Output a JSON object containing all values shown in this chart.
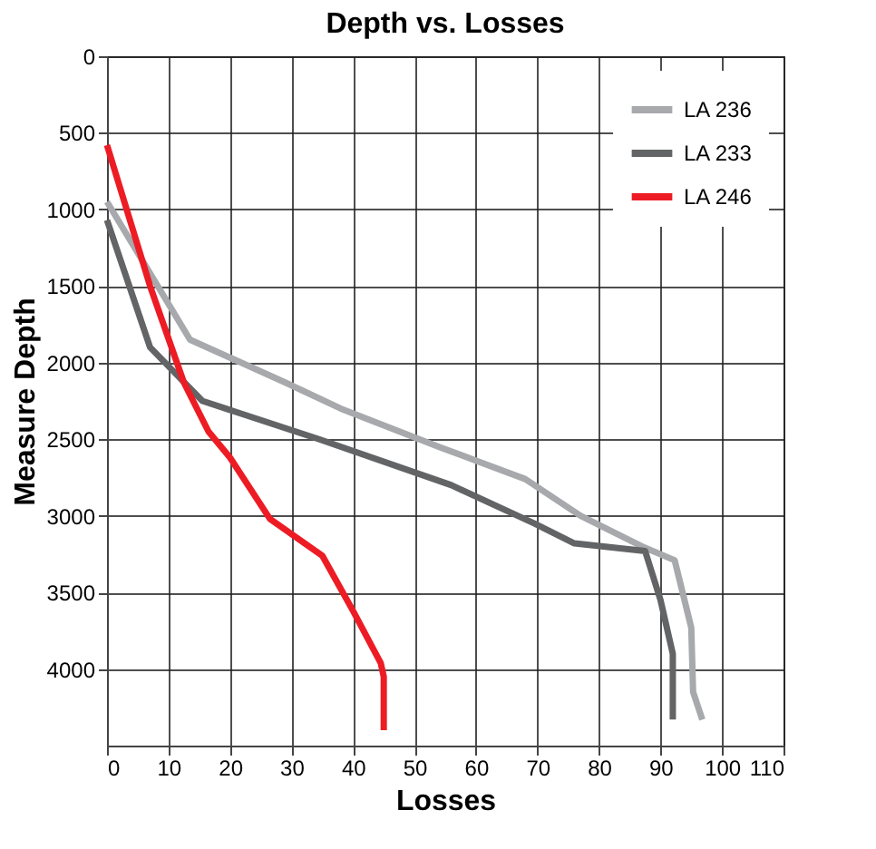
{
  "chart_data": {
    "type": "line",
    "title": "Depth vs. Losses",
    "xlabel": "Losses",
    "ylabel": "Measure Depth",
    "xlim": [
      0,
      110
    ],
    "xticks": [
      0,
      10,
      20,
      30,
      40,
      50,
      60,
      70,
      80,
      90,
      100,
      110
    ],
    "ylim": [
      4500,
      0
    ],
    "yticks": [
      0,
      500,
      1000,
      1500,
      2000,
      2500,
      3000,
      3500,
      4000
    ],
    "grid": true,
    "legend": "top right",
    "marker": "none",
    "line_style": "solid",
    "series": [
      {
        "name": "LA 236",
        "color": "#a7a9ac",
        "x": [
          0,
          13.5,
          29,
          38,
          54,
          68,
          77,
          87,
          92.3,
          95,
          95.3,
          96.8
        ],
        "values": [
          950,
          1850,
          2130,
          2300,
          2550,
          2760,
          3000,
          3200,
          3290,
          3730,
          4150,
          4330
        ]
      },
      {
        "name": "LA 233",
        "color": "#636466",
        "x": [
          0,
          7,
          15.5,
          34.5,
          56,
          69.5,
          76,
          87.5,
          90,
          92,
          92
        ],
        "values": [
          1070,
          1900,
          2250,
          2500,
          2800,
          3050,
          3180,
          3230,
          3550,
          3900,
          4330
        ]
      },
      {
        "name": "LA 246",
        "color": "#ed1c24",
        "x": [
          0,
          7,
          12.5,
          16.5,
          20,
          26.5,
          35,
          40,
          44.5,
          45,
          45
        ],
        "values": [
          580,
          1500,
          2130,
          2450,
          2620,
          3020,
          3260,
          3620,
          3960,
          4050,
          4400
        ]
      }
    ]
  }
}
